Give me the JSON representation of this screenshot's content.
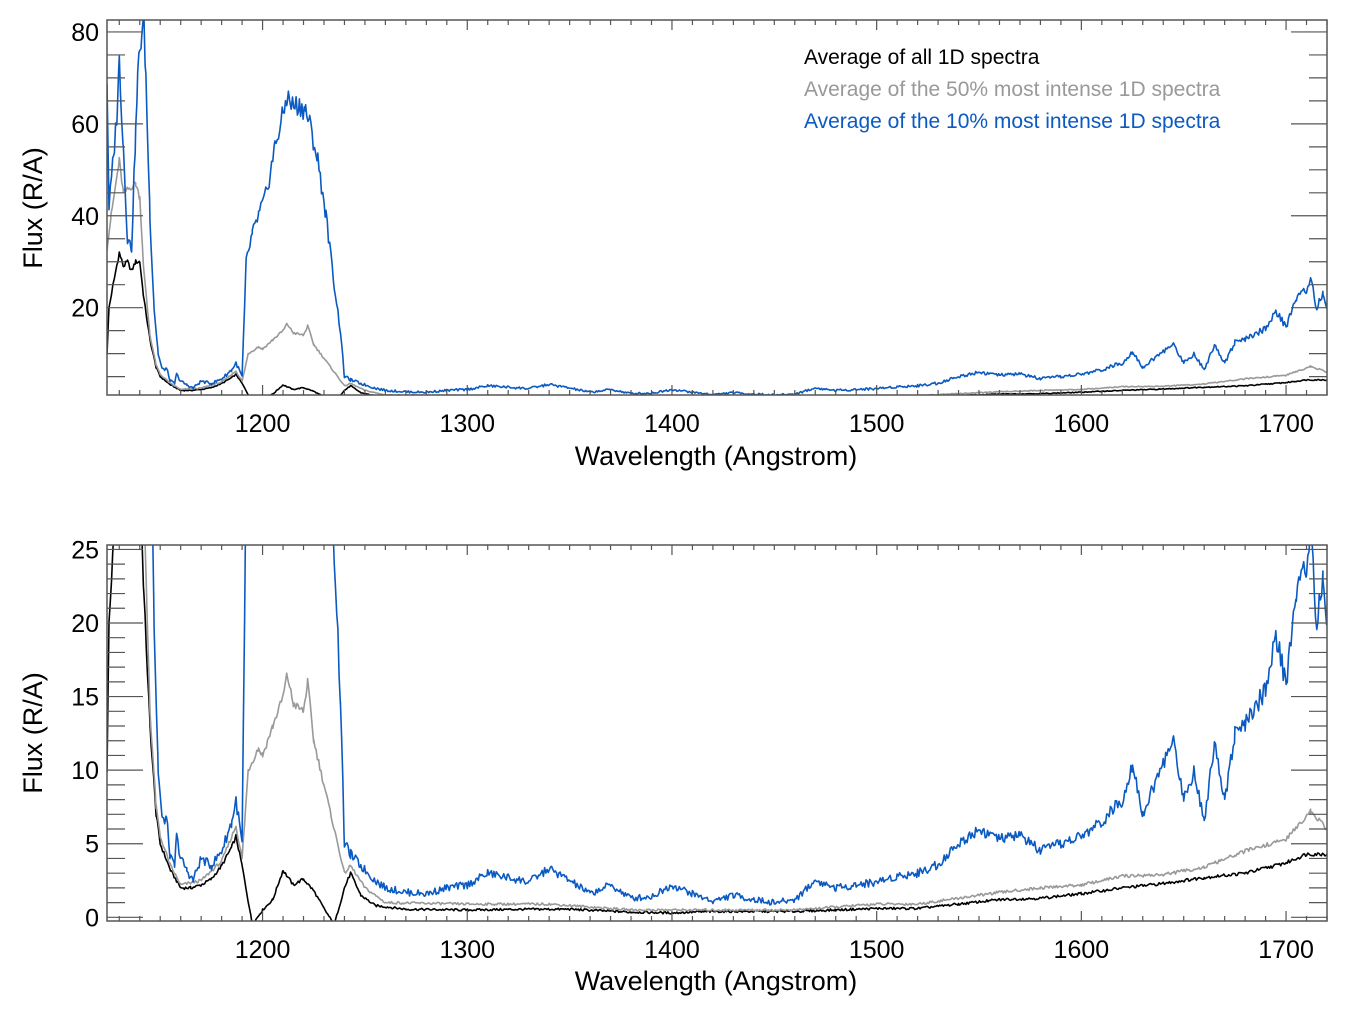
{
  "chart_data": [
    {
      "type": "line",
      "panel": "top",
      "title": "",
      "xlabel": "Wavelength (Angstrom)",
      "ylabel": "Flux (R/A)",
      "xlim": [
        1124,
        1720
      ],
      "ylim": [
        1,
        82.6
      ],
      "xticks": [
        1200,
        1300,
        1400,
        1500,
        1600,
        1700
      ],
      "xtick_labels": [
        "1200",
        "1300",
        "1400",
        "1500",
        "1600",
        "1700"
      ],
      "yticks": [
        20,
        40,
        60,
        80
      ],
      "ytick_labels": [
        "20",
        "40",
        "60",
        "80"
      ],
      "yminor_step": 5,
      "xminor_step": 10,
      "grid": false,
      "legend_position": "top-right",
      "series_ref": "shared_series"
    },
    {
      "type": "line",
      "panel": "bottom",
      "title": "",
      "xlabel": "Wavelength (Angstrom)",
      "ylabel": "Flux (R/A)",
      "xlim": [
        1124,
        1720
      ],
      "ylim": [
        -0.25,
        25.3
      ],
      "xticks": [
        1200,
        1300,
        1400,
        1500,
        1600,
        1700
      ],
      "xtick_labels": [
        "1200",
        "1300",
        "1400",
        "1500",
        "1600",
        "1700"
      ],
      "yticks": [
        0,
        5,
        10,
        15,
        20,
        25
      ],
      "ytick_labels": [
        "0",
        "5",
        "10",
        "15",
        "20",
        "25"
      ],
      "yminor_step": 1,
      "xminor_step": 10,
      "grid": false,
      "legend_position": "none",
      "series_ref": "shared_series"
    }
  ],
  "shared_series": [
    {
      "name": "Average of all 1D spectra",
      "color": "#000000",
      "x": [
        1124,
        1125,
        1127,
        1130,
        1132,
        1134,
        1136,
        1138,
        1140,
        1142,
        1145,
        1148,
        1150,
        1155,
        1160,
        1165,
        1170,
        1175,
        1180,
        1185,
        1187,
        1190,
        1195,
        1200,
        1205,
        1210,
        1215,
        1220,
        1225,
        1230,
        1235,
        1240,
        1243,
        1248,
        1255,
        1270,
        1300,
        1330,
        1350,
        1380,
        1400,
        1420,
        1440,
        1460,
        1480,
        1500,
        1520,
        1540,
        1560,
        1580,
        1600,
        1620,
        1640,
        1660,
        1680,
        1700,
        1710,
        1720
      ],
      "y": [
        10,
        20,
        25,
        32,
        29,
        30,
        28,
        30,
        30,
        22,
        13,
        7,
        5,
        3.2,
        2,
        2,
        2.2,
        2.6,
        3.5,
        4.8,
        5.5,
        3.5,
        -0.5,
        0.5,
        1.2,
        3.2,
        2.2,
        2.6,
        1.8,
        0.6,
        -0.5,
        2,
        3,
        1.5,
        0.8,
        0.55,
        0.5,
        0.55,
        0.55,
        0.35,
        0.3,
        0.4,
        0.4,
        0.4,
        0.5,
        0.6,
        0.6,
        0.9,
        1.2,
        1.3,
        1.6,
        2.0,
        2.3,
        2.7,
        3.0,
        3.7,
        4.3,
        4.3
      ]
    },
    {
      "name": "Average of the 50% most intense 1D spectra",
      "color": "#999999",
      "x": [
        1124,
        1126,
        1130,
        1132,
        1135,
        1138,
        1140,
        1142,
        1145,
        1148,
        1150,
        1155,
        1160,
        1170,
        1180,
        1187,
        1190,
        1193,
        1198,
        1200,
        1205,
        1210,
        1212,
        1215,
        1220,
        1222,
        1225,
        1230,
        1235,
        1240,
        1243,
        1250,
        1260,
        1300,
        1340,
        1380,
        1420,
        1460,
        1500,
        1520,
        1540,
        1560,
        1580,
        1600,
        1620,
        1640,
        1660,
        1680,
        1700,
        1712,
        1720
      ],
      "y": [
        33,
        40,
        52,
        45,
        46,
        47,
        44,
        28,
        14,
        7.5,
        5.5,
        3.5,
        2.2,
        2.5,
        3.8,
        6.2,
        4,
        10,
        11.5,
        11,
        13,
        15,
        16.5,
        14.5,
        14,
        16,
        12,
        9,
        6,
        3,
        3.5,
        2,
        1,
        0.9,
        0.9,
        0.5,
        0.5,
        0.5,
        0.9,
        0.9,
        1.3,
        1.7,
        2.0,
        2.2,
        2.8,
        2.9,
        3.4,
        4.5,
        5.3,
        7.2,
        6
      ]
    },
    {
      "name": "Average of the 10% most intense 1D spectra",
      "color": "#0a5ac2",
      "x": [
        1124,
        1125,
        1127,
        1129,
        1130,
        1132,
        1134,
        1136,
        1138,
        1139,
        1140,
        1141,
        1142,
        1143,
        1145,
        1147,
        1149,
        1151,
        1153,
        1155,
        1157,
        1158,
        1160,
        1163,
        1166,
        1170,
        1175,
        1180,
        1185,
        1187,
        1190,
        1192,
        1195,
        1198,
        1202,
        1206,
        1210,
        1212,
        1214,
        1218,
        1221,
        1223,
        1227,
        1231,
        1235,
        1238,
        1240,
        1243,
        1248,
        1255,
        1260,
        1270,
        1280,
        1290,
        1300,
        1310,
        1320,
        1330,
        1340,
        1350,
        1360,
        1370,
        1380,
        1390,
        1400,
        1410,
        1420,
        1430,
        1440,
        1450,
        1460,
        1470,
        1480,
        1490,
        1500,
        1510,
        1520,
        1530,
        1540,
        1550,
        1560,
        1570,
        1580,
        1590,
        1600,
        1610,
        1620,
        1625,
        1630,
        1640,
        1645,
        1650,
        1655,
        1660,
        1665,
        1670,
        1675,
        1680,
        1690,
        1695,
        1700,
        1705,
        1710,
        1712,
        1715,
        1718,
        1720,
        1721
      ],
      "y": [
        70,
        42,
        52,
        63,
        74,
        55,
        35,
        33,
        58,
        70,
        76,
        80,
        82,
        70,
        40,
        20,
        10,
        6.5,
        6.8,
        4,
        3.5,
        5.5,
        4,
        3.2,
        2.5,
        4,
        3.5,
        4.5,
        6.5,
        8,
        5,
        30,
        36,
        40,
        45,
        55,
        62,
        66,
        64,
        64,
        63,
        60,
        52,
        40,
        25,
        15,
        5,
        4.3,
        3.5,
        2.5,
        2,
        1.7,
        1.6,
        2.0,
        2.2,
        3.0,
        2.7,
        2.4,
        3.3,
        2.5,
        1.6,
        2.2,
        1.3,
        1.4,
        2.2,
        1.6,
        1.1,
        1.5,
        1.2,
        1.0,
        1.2,
        2.5,
        2.0,
        2.2,
        2.4,
        2.8,
        3.0,
        3.6,
        5.0,
        6.0,
        5.3,
        5.6,
        4.5,
        5.0,
        5.5,
        6.5,
        8.0,
        10.5,
        7.0,
        10.5,
        12.0,
        8.0,
        10.0,
        6.5,
        12.0,
        8.0,
        12.5,
        13.0,
        15.5,
        19,
        16,
        22,
        24,
        26,
        20,
        23,
        20,
        28
      ]
    }
  ],
  "legend": [
    {
      "label": "Average of all 1D spectra",
      "color": "#000000"
    },
    {
      "label": "Average of the 50% most intense 1D spectra",
      "color": "#999999"
    },
    {
      "label": "Average of the 10% most intense 1D spectra",
      "color": "#0a5ac2"
    }
  ]
}
